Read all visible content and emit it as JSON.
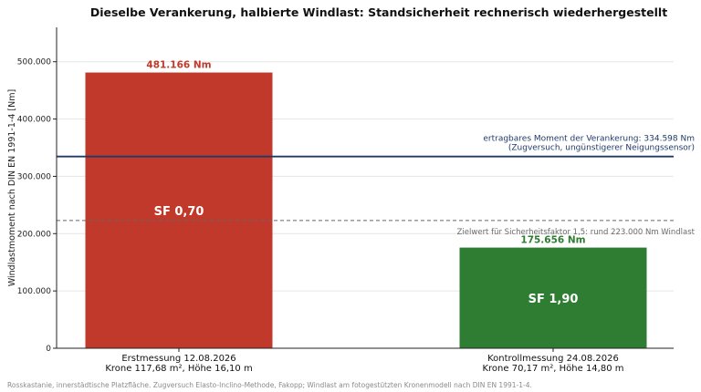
{
  "chart_data": {
    "type": "bar",
    "title": "Dieselbe Verankerung, halbierte Windlast: Standsicherheit rechnerisch wiederhergestellt",
    "ylabel": "Windlastmoment nach DIN EN 1991-1-4  [Nm]",
    "xlabel": "",
    "ylim": [
      0,
      560000
    ],
    "yticks": [
      0,
      100000,
      200000,
      300000,
      400000,
      500000
    ],
    "ytick_labels": [
      "0",
      "100.000",
      "200.000",
      "300.000",
      "400.000",
      "500.000"
    ],
    "grid": true,
    "categories": [
      [
        "Erstmessung 12.08.2026",
        "Krone 117,68 m², Höhe 16,10 m"
      ],
      [
        "Kontrollmessung 24.08.2026",
        "Krone 70,17 m², Höhe 14,80 m"
      ]
    ],
    "values": [
      481166,
      175656
    ],
    "value_labels": [
      "481.166 Nm",
      "175.656 Nm"
    ],
    "bar_labels": [
      "SF 0,70",
      "SF 1,90"
    ],
    "bar_colors": [
      "#c0392b",
      "#2e7d32"
    ],
    "reference_line": {
      "value": 334598,
      "color": "#1f3a68",
      "label": [
        "ertragbares Moment der Verankerung: 334.598 Nm",
        "(Zugversuch, ungünstigerer Neigungssensor)"
      ]
    },
    "target_line": {
      "value": 223000,
      "color": "#666666",
      "label": "Zielwert für Sicherheitsfaktor 1,5: rund 223.000 Nm Windlast"
    }
  },
  "footnote": "Rosskastanie, innerstädtische Platzfläche. Zugversuch Elasto-Inclino-Methode, Fakopp; Windlast am fotogestützten Kronenmodell nach DIN EN 1991-1-4."
}
